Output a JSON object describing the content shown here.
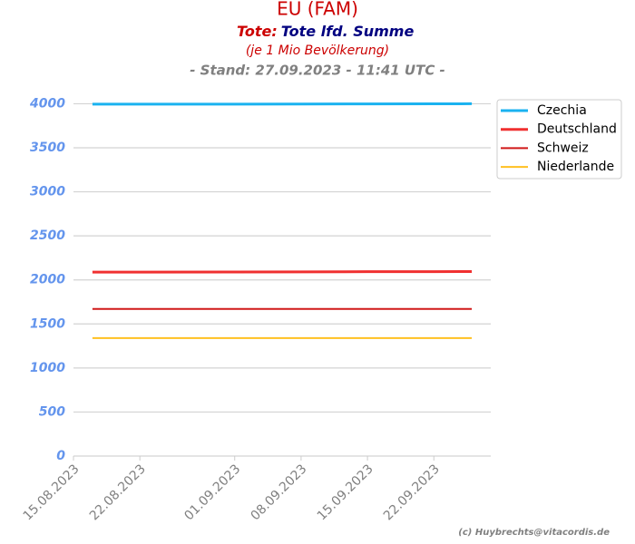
{
  "chart_data": {
    "type": "line",
    "title": "EU (FAM)",
    "subtitle_label": "Tote:",
    "subtitle": "Tote lfd. Summe",
    "note": "(je 1 Mio Bevölkerung)",
    "stand": "- Stand: 27.09.2023 - 11:41 UTC -",
    "credit": "(c) Huybrechts@vitacordis.de",
    "x": [
      "17.08.2023",
      "22.08.2023",
      "01.09.2023",
      "08.09.2023",
      "15.09.2023",
      "22.09.2023",
      "26.09.2023"
    ],
    "series": [
      {
        "name": "Czechia",
        "color": "#1ab2f0",
        "values": [
          3995,
          3995,
          3996,
          3997,
          3998,
          3999,
          4000
        ]
      },
      {
        "name": "Deutschland",
        "color": "#f03030",
        "values": [
          2088,
          2089,
          2090,
          2091,
          2093,
          2094,
          2095
        ]
      },
      {
        "name": "Schweiz",
        "color": "#d01818",
        "values": [
          1670,
          1670,
          1670,
          1670,
          1670,
          1670,
          1670
        ]
      },
      {
        "name": "Niederlande",
        "color": "#ffc020",
        "values": [
          1340,
          1340,
          1340,
          1340,
          1340,
          1340,
          1340
        ]
      }
    ],
    "xlim": [
      "15.08.2023",
      "28.09.2023"
    ],
    "xticks": [
      "15.08.2023",
      "22.08.2023",
      "01.09.2023",
      "08.09.2023",
      "15.09.2023",
      "22.09.2023"
    ],
    "ylim": [
      0,
      4200
    ],
    "yticks": [
      0,
      500,
      1000,
      1500,
      2000,
      2500,
      3000,
      3500,
      4000
    ],
    "grid": true,
    "legend": "outside right"
  }
}
